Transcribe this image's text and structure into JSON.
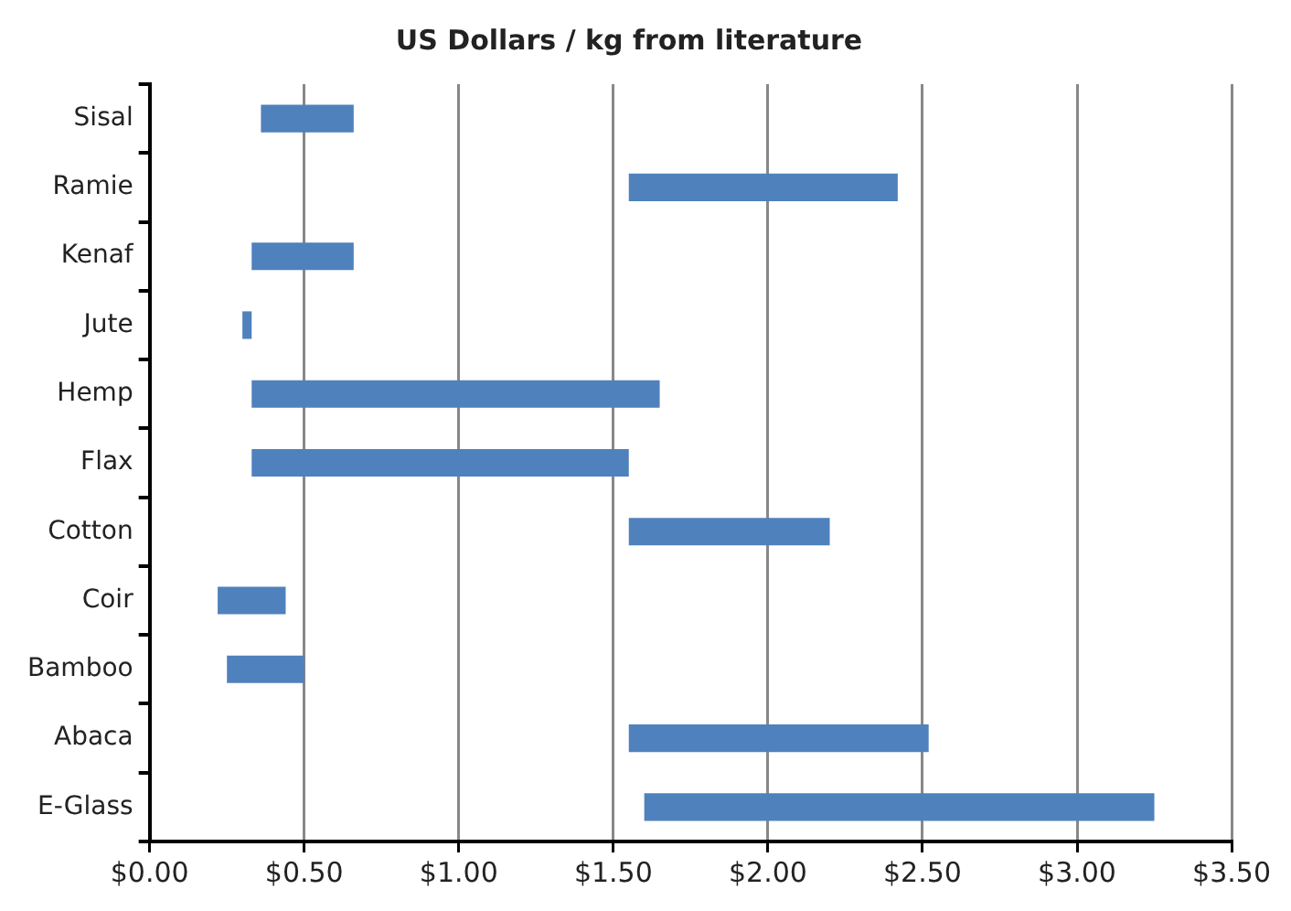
{
  "chart_data": {
    "type": "bar",
    "orientation": "horizontal",
    "title": "US Dollars / kg from literature",
    "categories": [
      "Sisal",
      "Ramie",
      "Kenaf",
      "Jute",
      "Hemp",
      "Flax",
      "Cotton",
      "Coir",
      "Bamboo",
      "Abaca",
      "E-Glass"
    ],
    "base": [
      0.36,
      1.55,
      0.33,
      0.3,
      0.33,
      0.33,
      1.55,
      0.22,
      0.25,
      1.55,
      1.6
    ],
    "values": [
      0.3,
      0.87,
      0.33,
      0.03,
      1.32,
      1.22,
      0.65,
      0.22,
      0.25,
      0.97,
      1.65
    ],
    "color": "#4f81bd",
    "xlim": [
      0,
      3.5
    ],
    "xticks": [
      {
        "value": 0,
        "label": "$0.00"
      },
      {
        "value": 0.5,
        "label": "$0.50"
      },
      {
        "value": 1,
        "label": "$1.00"
      },
      {
        "value": 1.5,
        "label": "$1.50"
      },
      {
        "value": 2,
        "label": "$2.00"
      },
      {
        "value": 2.5,
        "label": "$2.50"
      },
      {
        "value": 3,
        "label": "$3.00"
      },
      {
        "value": 3.5,
        "label": "$3.50"
      }
    ],
    "grid": "x",
    "legend": false
  }
}
